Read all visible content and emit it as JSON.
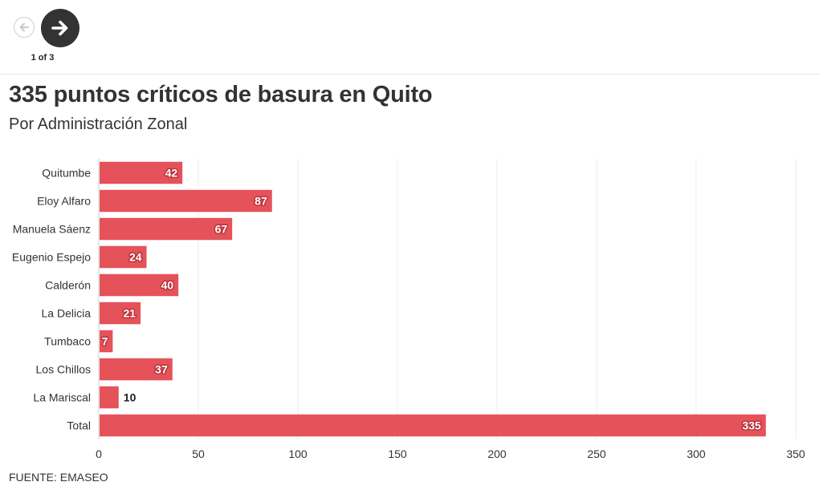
{
  "navigation": {
    "prev_icon": "arrow-left-icon",
    "next_icon": "arrow-right-icon",
    "page_indicator": "1 of 3"
  },
  "header": {
    "title": "335 puntos críticos de basura en Quito",
    "subtitle": "Por Administración Zonal"
  },
  "chart_data": {
    "type": "bar",
    "orientation": "horizontal",
    "categories": [
      "Quitumbe",
      "Eloy Alfaro",
      "Manuela Sáenz",
      "Eugenio Espejo",
      "Calderón",
      "La Delicia",
      "Tumbaco",
      "Los Chillos",
      "La Mariscal",
      "Total"
    ],
    "values": [
      42,
      87,
      67,
      24,
      40,
      21,
      7,
      37,
      10,
      335
    ],
    "xlim": [
      0,
      350
    ],
    "xticks": [
      0,
      50,
      100,
      150,
      200,
      250,
      300,
      350
    ],
    "grid": true,
    "bar_color": "#e5525a",
    "label_outline_color": "#b8323a"
  },
  "footer": {
    "source": "FUENTE: EMASEO"
  }
}
